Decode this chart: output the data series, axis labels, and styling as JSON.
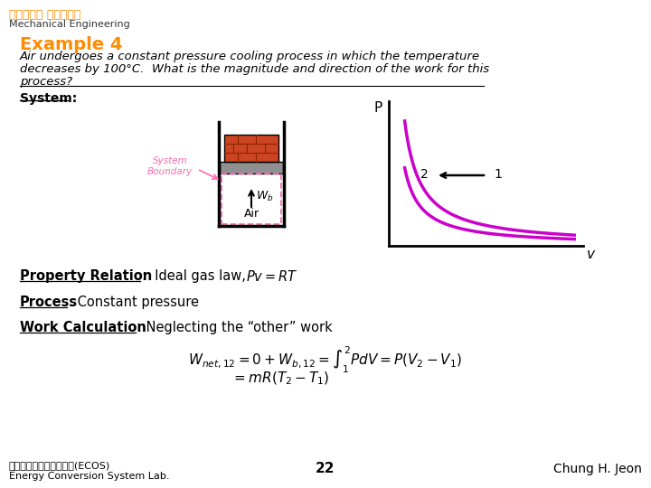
{
  "title": "Example 4",
  "subtitle_line1": "Air undergoes a constant pressure cooling process in which the temperature",
  "subtitle_line2": "decreases by 100°C.  What is the magnitude and direction of the work for this",
  "subtitle_line3": "process?",
  "system_label": "System:",
  "system_boundary_label": "System\nBoundary",
  "wb_label": "$W_b$",
  "air_label": "Air",
  "p_label": "P",
  "v_label": "v",
  "point1_label": "1",
  "point2_label": "2",
  "property_relation_bold": "Property Relation",
  "property_relation_text": ":  Ideal gas law, ",
  "process_bold": "Process",
  "process_text": ": Constant pressure",
  "work_calc_bold": "Work Calculation",
  "work_calc_text": ": Neglecting the “other” work",
  "formula1": "$W_{net,12} = 0 + W_{b,12} = \\int_1^2 PdV = P(V_2 - V_1)$",
  "formula2": "$= mR(T_2 - T_1)$",
  "footer_left_line1": "에너지변환시스템연구실(ECOS)",
  "footer_left_line2": "Energy Conversion System Lab.",
  "footer_center": "22",
  "footer_right": "Chung H. Jeon",
  "header_korean": "부산대학교 기계공학부",
  "header_english": "Mechanical Engineering",
  "bg_color": "#ffffff",
  "title_color": "#FF8C00",
  "text_color": "#000000",
  "header_korean_color": "#FF8C00",
  "curve_color": "#CC00CC",
  "piston_color": "#909090",
  "brick_color": "#CC4422",
  "boundary_color": "#FF69B4"
}
